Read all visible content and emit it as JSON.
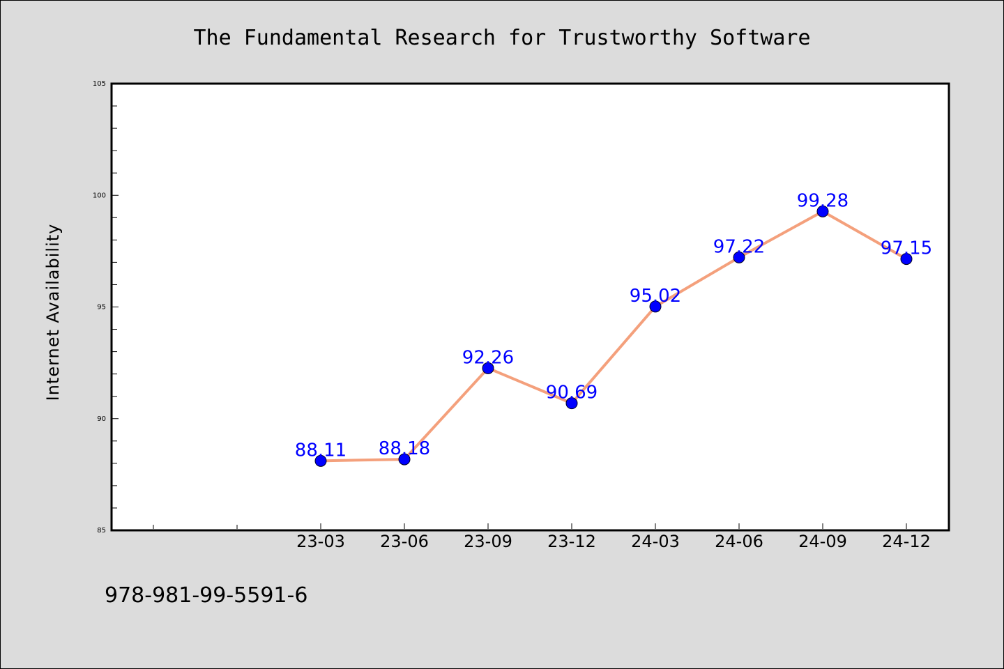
{
  "footer_text": "978-981-99-5591-6",
  "chart_data": {
    "type": "line",
    "title": "The Fundamental Research for Trustworthy Software",
    "ylabel": "Internet Availability",
    "xlabel": "",
    "categories": [
      "23-03",
      "23-06",
      "23-09",
      "23-12",
      "24-03",
      "24-06",
      "24-09",
      "24-12"
    ],
    "values": [
      88.11,
      88.18,
      92.26,
      90.69,
      95.02,
      97.22,
      99.28,
      97.15
    ],
    "data_labels": [
      "88.11",
      "88.18",
      "92.26",
      "90.69",
      "95.02",
      "97.22",
      "99.28",
      "97.15"
    ],
    "ylim": [
      85,
      105
    ],
    "yticks": [
      85,
      90,
      95,
      100,
      105
    ],
    "line_color": "#f4a07c",
    "marker_color": "#0000ff",
    "label_color": "#0000ff",
    "grid": false
  }
}
